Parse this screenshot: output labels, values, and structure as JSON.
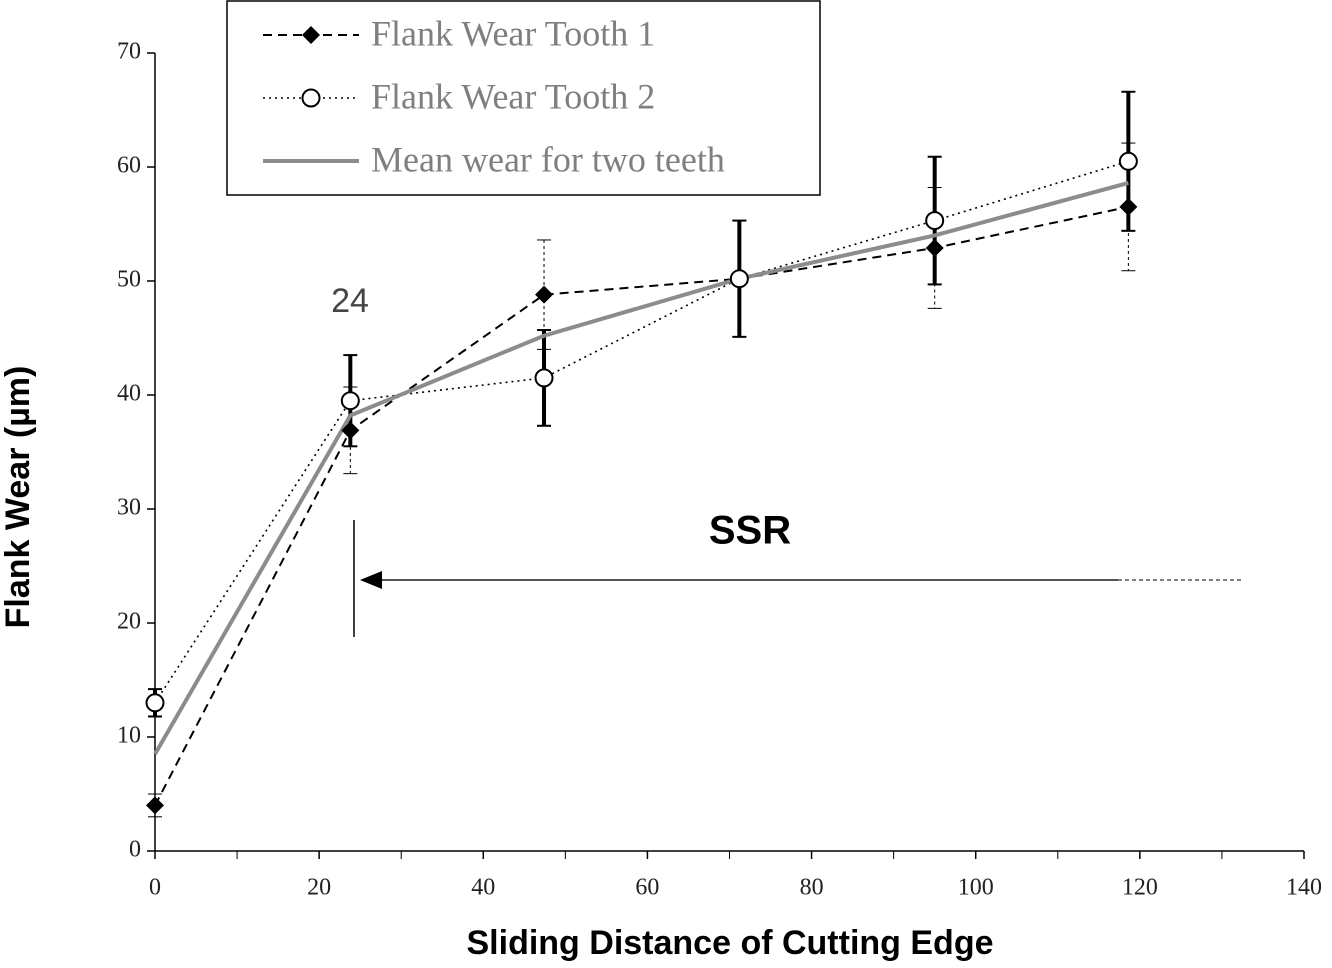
{
  "chart_data": {
    "type": "line",
    "x_label": "Sliding Distance of Cutting Edge",
    "y_label": "Flank Wear (µm)",
    "x": [
      0,
      23.8,
      47.4,
      71.2,
      95,
      118.6
    ],
    "series": [
      {
        "name": "Flank Wear Tooth 1",
        "color": "#000000",
        "values": [
          4.0,
          36.9,
          48.8,
          50.2,
          52.9,
          56.5
        ],
        "errors": [
          1.0,
          3.8,
          4.8,
          5.1,
          5.3,
          5.6
        ]
      },
      {
        "name": "Flank Wear Tooth 2",
        "color": "#000000",
        "values": [
          13.0,
          39.5,
          41.5,
          50.2,
          55.3,
          60.5
        ],
        "errors": [
          1.2,
          4.0,
          4.2,
          5.1,
          5.6,
          6.1
        ]
      },
      {
        "name": "Mean wear for two teeth",
        "color": "#8c8c8c",
        "values": [
          8.5,
          38.2,
          45.2,
          50.2,
          54.0,
          58.6
        ]
      }
    ],
    "annotations": [
      "24",
      "SSR"
    ],
    "xlim": [
      0,
      140
    ],
    "xticks": [
      0,
      20,
      40,
      60,
      80,
      100,
      120,
      140
    ],
    "ylim": [
      0,
      70
    ],
    "yticks": [
      0,
      10,
      20,
      30,
      40,
      50,
      60,
      70
    ],
    "grid": false
  }
}
